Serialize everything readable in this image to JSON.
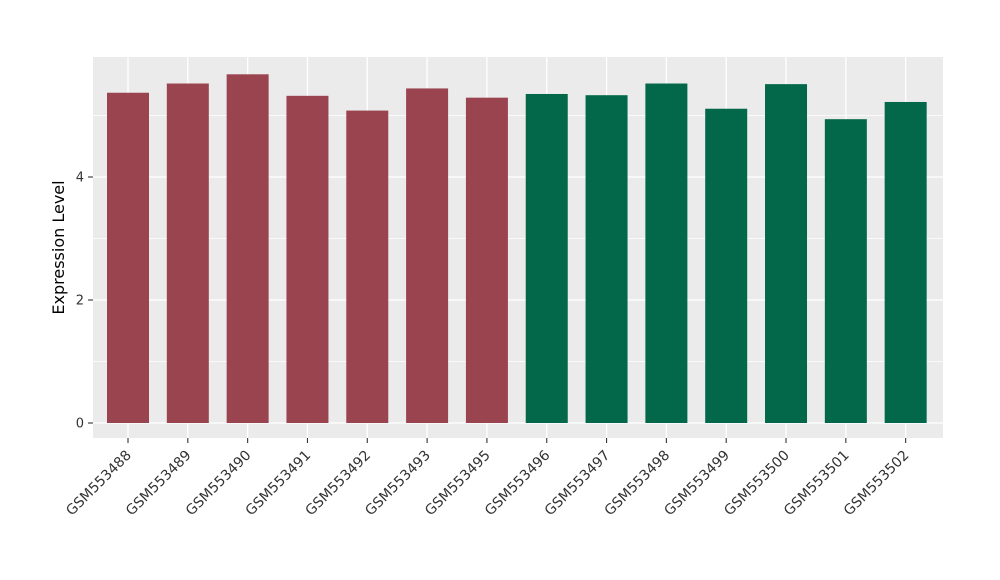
{
  "chart_data": {
    "type": "bar",
    "title": "",
    "ylabel": "Expression Level",
    "xlabel": "",
    "categories": [
      "GSM553488",
      "GSM553489",
      "GSM553490",
      "GSM553491",
      "GSM553492",
      "GSM553493",
      "GSM553495",
      "GSM553496",
      "GSM553497",
      "GSM553498",
      "GSM553499",
      "GSM553500",
      "GSM553501",
      "GSM553502"
    ],
    "values": [
      5.37,
      5.52,
      5.67,
      5.32,
      5.08,
      5.44,
      5.29,
      5.35,
      5.33,
      5.52,
      5.11,
      5.51,
      4.94,
      5.22
    ],
    "bar_colors": [
      "#9A4450",
      "#9A4450",
      "#9A4450",
      "#9A4450",
      "#9A4450",
      "#9A4450",
      "#9A4450",
      "#026849",
      "#026849",
      "#026849",
      "#026849",
      "#026849",
      "#026849",
      "#026849"
    ],
    "color_groups": [
      {
        "color": "#9A4450",
        "first_category": "GSM553488",
        "last_category": "GSM553495"
      },
      {
        "color": "#026849",
        "first_category": "GSM553496",
        "last_category": "GSM553502"
      }
    ],
    "y_ticks": [
      0,
      2,
      4
    ],
    "y_tick_labels": [
      "0",
      "2",
      "4"
    ],
    "y_minor_ticks": [
      1,
      3,
      5
    ],
    "ylim": [
      0,
      6
    ],
    "x_tick_rotation_deg": 45,
    "grid": true,
    "legend": false,
    "style": {
      "panel_bg": "#EBEBEB",
      "figure_bg": "#FFFFFF",
      "grid_color": "#FFFFFF",
      "tick_color": "#333333",
      "tick_label_color": "#333333",
      "axis_title_color": "#000000"
    }
  }
}
